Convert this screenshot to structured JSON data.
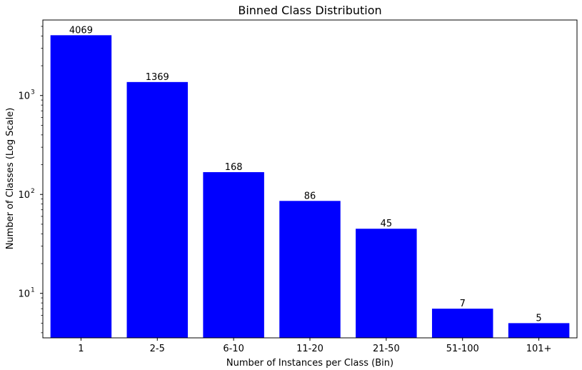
{
  "chart_data": {
    "type": "bar",
    "title": "Binned Class Distribution",
    "xlabel": "Number of Instances per Class (Bin)",
    "ylabel": "Number of Classes (Log Scale)",
    "y_scale": "log",
    "ylim": [
      3.55,
      5800
    ],
    "y_major_ticks": [
      {
        "value": 10,
        "base": "10",
        "exp": "1"
      },
      {
        "value": 100,
        "base": "10",
        "exp": "2"
      },
      {
        "value": 1000,
        "base": "10",
        "exp": "3"
      }
    ],
    "categories": [
      "1",
      "2-5",
      "6-10",
      "11-20",
      "21-50",
      "51-100",
      "101+"
    ],
    "values": [
      4069,
      1369,
      168,
      86,
      45,
      7,
      5
    ],
    "data_labels": [
      "4069",
      "1369",
      "168",
      "86",
      "45",
      "7",
      "5"
    ],
    "bar_color": "#0000ff",
    "grid": false,
    "legend": "none"
  }
}
